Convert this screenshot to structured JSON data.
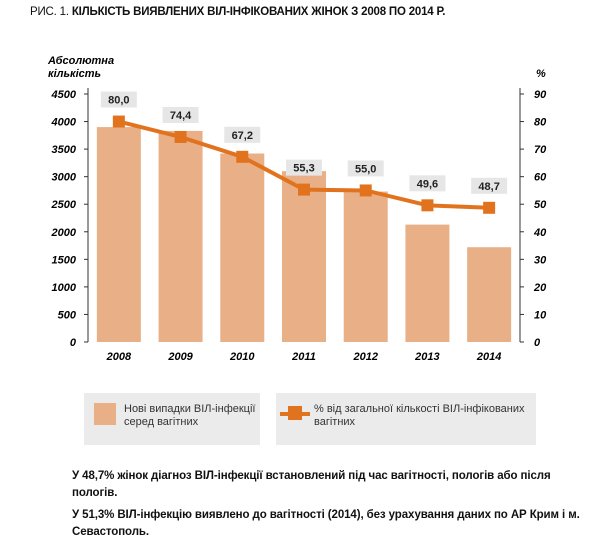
{
  "title_prefix": "РИС. 1.",
  "title_main": "КІЛЬКІСТЬ ВИЯВЛЕНИХ ВІЛ-ІНФІКОВАНИХ ЖІНОК З 2008 ПО 2014 Р.",
  "colors": {
    "bar": "#e9b088",
    "line": "#e2731e",
    "label_bg": "#e6e6e6",
    "legend_bg": "#ebebeb"
  },
  "chart_data": {
    "type": "bar",
    "categories": [
      "2008",
      "2009",
      "2010",
      "2011",
      "2012",
      "2013",
      "2014"
    ],
    "ylabel": "Абсолютна кількість",
    "y2label": "%",
    "ylim": [
      0,
      4500
    ],
    "y2lim": [
      0,
      90
    ],
    "yticks": [
      "0",
      "500",
      "1000",
      "1500",
      "2000",
      "2500",
      "3000",
      "3500",
      "4000",
      "4500"
    ],
    "y2ticks": [
      "0",
      "10",
      "20",
      "30",
      "40",
      "50",
      "60",
      "70",
      "80",
      "90"
    ],
    "series": [
      {
        "name": "Нові випадки ВІЛ-інфекції серед вагітних",
        "kind": "bar",
        "axis": "left",
        "values": [
          3900,
          3830,
          3420,
          3100,
          2730,
          2130,
          1720
        ]
      },
      {
        "name": "% від загальної кількості ВІЛ-інфікованих вагітних",
        "kind": "line",
        "axis": "right",
        "values": [
          80.0,
          74.4,
          67.2,
          55.3,
          55.0,
          49.6,
          48.7
        ],
        "labels": [
          "80,0",
          "74,4",
          "67,2",
          "55,3",
          "55,0",
          "49,6",
          "48,7"
        ]
      }
    ],
    "legend": {
      "bar_label": "Нові випадки ВІЛ-інфекції\nсеред вагітних",
      "line_label": "% від загальної кількості ВІЛ-інфікованих\nвагітних",
      "position": "bottom"
    },
    "grid": false
  },
  "notes": [
    "У 48,7% жінок діагноз ВІЛ-інфекції встановлений під час вагітності, пологів або після пологів.",
    "У 51,3% ВІЛ-інфекцію виявлено до вагітності (2014), без урахування даних по АР Крим і м. Севастополь."
  ]
}
